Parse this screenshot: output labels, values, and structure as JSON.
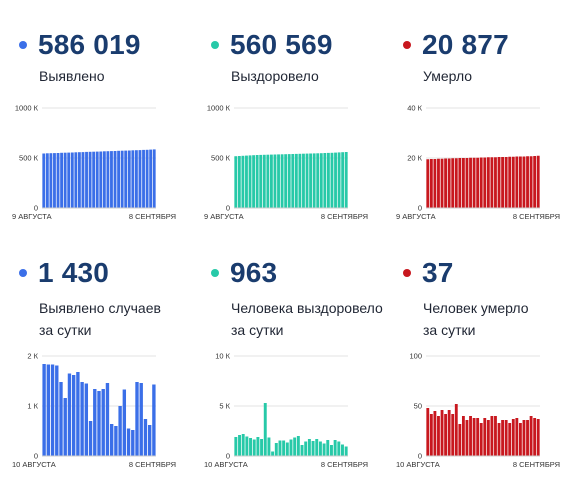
{
  "panels": [
    {
      "value": "586 019",
      "label_lines": [
        "Выявлено"
      ],
      "color": "#3b6fe8",
      "chart_data": {
        "type": "bar",
        "y_ticks": [
          0,
          500,
          1000
        ],
        "y_tick_labels": [
          "0",
          "500 К",
          "1000 К"
        ],
        "ylim": [
          0,
          1000
        ],
        "x_start_label": "9 АВГУСТА",
        "x_end_label": "8 СЕНТЯБРЯ",
        "values": [
          545,
          547,
          548,
          549,
          550,
          552,
          553,
          554,
          555,
          557,
          558,
          559,
          561,
          562,
          563,
          564,
          565,
          567,
          568,
          569,
          570,
          572,
          573,
          574,
          575,
          577,
          578,
          579,
          581,
          582,
          584,
          586
        ]
      }
    },
    {
      "value": "560 569",
      "label_lines": [
        "Выздоровело"
      ],
      "color": "#27c9a8",
      "chart_data": {
        "type": "bar",
        "y_ticks": [
          0,
          500,
          1000
        ],
        "y_tick_labels": [
          "0",
          "500 К",
          "1000 К"
        ],
        "ylim": [
          0,
          1000
        ],
        "x_start_label": "9 АВГУСТА",
        "x_end_label": "8 СЕНТЯБРЯ",
        "values": [
          518,
          520,
          522,
          524,
          526,
          528,
          530,
          531,
          532,
          533,
          534,
          535,
          536,
          537,
          538,
          539,
          540,
          541,
          542,
          543,
          544,
          545,
          546,
          547,
          548,
          550,
          551,
          552,
          554,
          556,
          558,
          560
        ]
      }
    },
    {
      "value": "20 877",
      "label_lines": [
        "Умерло"
      ],
      "color": "#c8171e",
      "chart_data": {
        "type": "bar",
        "y_ticks": [
          0,
          20,
          40
        ],
        "y_tick_labels": [
          "0",
          "20 К",
          "40 К"
        ],
        "ylim": [
          0,
          40
        ],
        "x_start_label": "9 АВГУСТА",
        "x_end_label": "8 СЕНТЯБРЯ",
        "values": [
          19.5,
          19.6,
          19.6,
          19.7,
          19.7,
          19.8,
          19.8,
          19.9,
          19.9,
          20.0,
          20.0,
          20.0,
          20.1,
          20.1,
          20.1,
          20.2,
          20.2,
          20.3,
          20.3,
          20.3,
          20.4,
          20.4,
          20.4,
          20.5,
          20.5,
          20.6,
          20.6,
          20.6,
          20.7,
          20.7,
          20.8,
          20.9
        ]
      }
    },
    {
      "value": "1 430",
      "label_lines": [
        "Выявлено случаев",
        "за сутки"
      ],
      "color": "#3b6fe8",
      "chart_data": {
        "type": "bar",
        "y_ticks": [
          0,
          1000,
          2000
        ],
        "y_tick_labels": [
          "0",
          "1 К",
          "2 К"
        ],
        "ylim": [
          0,
          2000
        ],
        "x_start_label": "10 АВГУСТА",
        "x_end_label": "8 СЕНТЯБРЯ",
        "values": [
          1840,
          1830,
          1830,
          1810,
          1480,
          1160,
          1650,
          1620,
          1680,
          1480,
          1450,
          700,
          1340,
          1300,
          1340,
          1460,
          640,
          600,
          1000,
          1330,
          550,
          520,
          1480,
          1460,
          740,
          620,
          1430
        ]
      }
    },
    {
      "value": "963",
      "label_lines": [
        "Человека выздоровело",
        "за сутки"
      ],
      "color": "#27c9a8",
      "chart_data": {
        "type": "bar",
        "y_ticks": [
          0,
          5000,
          10000
        ],
        "y_tick_labels": [
          "0",
          "5 К",
          "10 К"
        ],
        "ylim": [
          0,
          10000
        ],
        "x_start_label": "10 АВГУСТА",
        "x_end_label": "8 СЕНТЯБРЯ",
        "values": [
          1900,
          2100,
          2200,
          1950,
          1800,
          1650,
          1900,
          1700,
          5300,
          1850,
          450,
          1300,
          1550,
          1550,
          1350,
          1650,
          1850,
          2000,
          1100,
          1450,
          1700,
          1500,
          1700,
          1450,
          1250,
          1600,
          1100,
          1600,
          1450,
          1150,
          950
        ]
      }
    },
    {
      "value": "37",
      "label_lines": [
        "Человек умерло",
        "за сутки"
      ],
      "color": "#c8171e",
      "chart_data": {
        "type": "bar",
        "y_ticks": [
          0,
          50,
          100
        ],
        "y_tick_labels": [
          "0",
          "50",
          "100"
        ],
        "ylim": [
          0,
          100
        ],
        "x_start_label": "10 АВГУСТА",
        "x_end_label": "8 СЕНТЯБРЯ",
        "values": [
          48,
          42,
          45,
          40,
          46,
          42,
          46,
          42,
          52,
          32,
          40,
          36,
          40,
          38,
          38,
          33,
          38,
          36,
          40,
          40,
          33,
          36,
          36,
          33,
          37,
          38,
          33,
          36,
          36,
          40,
          38,
          37
        ]
      }
    }
  ]
}
